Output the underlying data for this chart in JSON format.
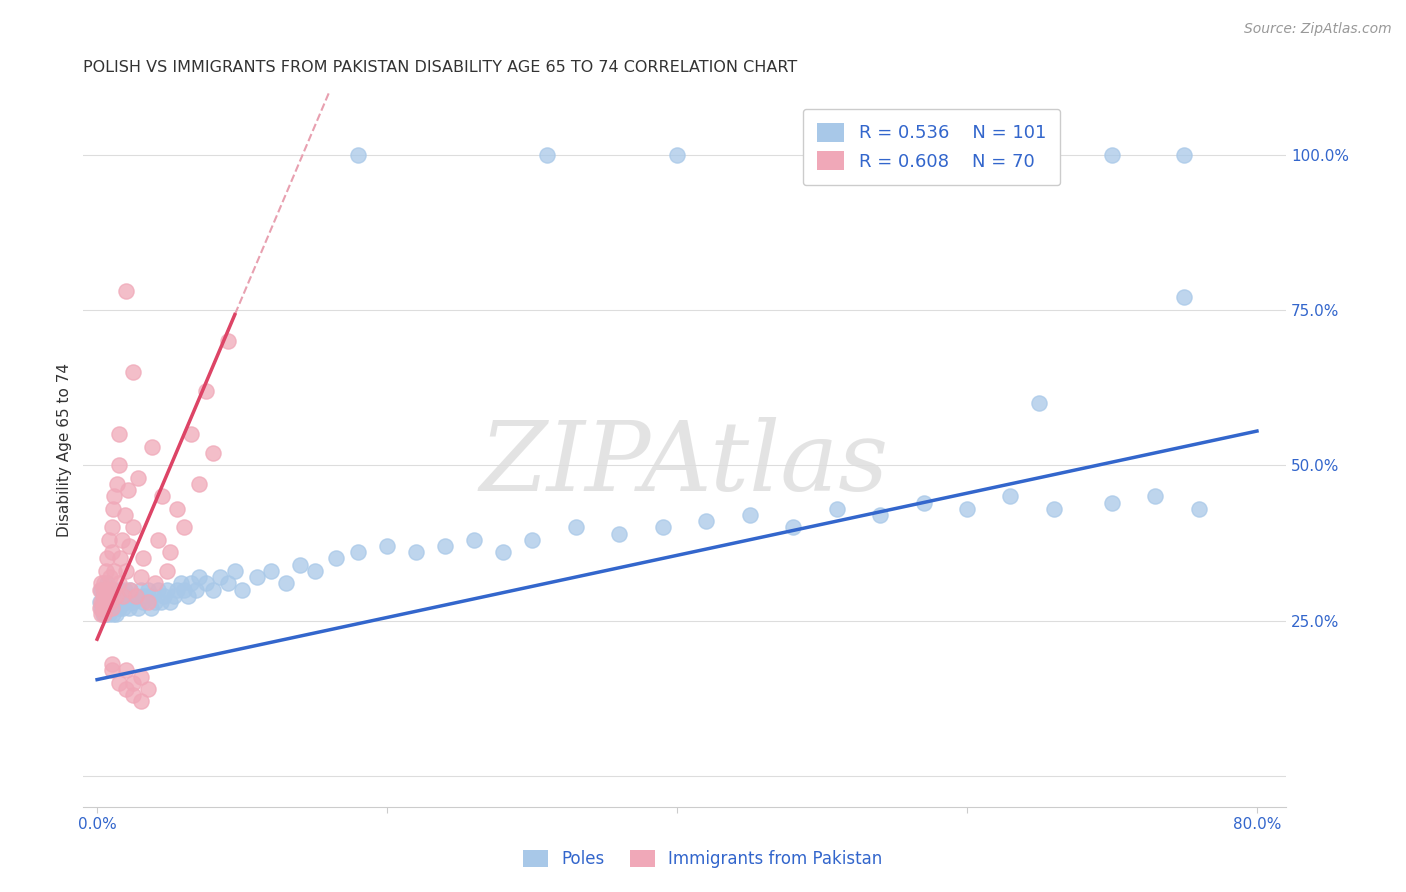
{
  "title": "POLISH VS IMMIGRANTS FROM PAKISTAN DISABILITY AGE 65 TO 74 CORRELATION CHART",
  "source": "Source: ZipAtlas.com",
  "ylabel": "Disability Age 65 to 74",
  "blue_color": "#a8c8e8",
  "pink_color": "#f0a8b8",
  "blue_line_color": "#3366cc",
  "pink_line_color": "#dd4466",
  "pink_dash_color": "#e8a0b0",
  "legend_blue_r": "R = 0.536",
  "legend_blue_n": "N = 101",
  "legend_pink_r": "R = 0.608",
  "legend_pink_n": "N = 70",
  "watermark": "ZIPAtlas",
  "blue_intercept": 0.155,
  "blue_slope": 0.5,
  "pink_intercept": 0.22,
  "pink_slope": 5.5,
  "blue_scatter_x": [
    0.002,
    0.003,
    0.003,
    0.004,
    0.004,
    0.005,
    0.005,
    0.005,
    0.006,
    0.006,
    0.007,
    0.007,
    0.008,
    0.008,
    0.009,
    0.009,
    0.01,
    0.01,
    0.01,
    0.011,
    0.011,
    0.012,
    0.012,
    0.013,
    0.013,
    0.014,
    0.015,
    0.015,
    0.016,
    0.017,
    0.018,
    0.019,
    0.02,
    0.021,
    0.022,
    0.023,
    0.025,
    0.027,
    0.028,
    0.03,
    0.032,
    0.033,
    0.035,
    0.037,
    0.038,
    0.04,
    0.042,
    0.044,
    0.046,
    0.048,
    0.05,
    0.053,
    0.055,
    0.058,
    0.06,
    0.063,
    0.065,
    0.068,
    0.07,
    0.075,
    0.08,
    0.085,
    0.09,
    0.095,
    0.1,
    0.11,
    0.12,
    0.13,
    0.14,
    0.15,
    0.165,
    0.18,
    0.2,
    0.22,
    0.24,
    0.26,
    0.28,
    0.3,
    0.33,
    0.36,
    0.39,
    0.42,
    0.45,
    0.48,
    0.51,
    0.54,
    0.57,
    0.6,
    0.63,
    0.66,
    0.7,
    0.73,
    0.76,
    0.18,
    0.31,
    0.4,
    0.57,
    0.7,
    0.75,
    0.65,
    0.75
  ],
  "blue_scatter_y": [
    0.28,
    0.27,
    0.3,
    0.26,
    0.29,
    0.27,
    0.28,
    0.3,
    0.26,
    0.29,
    0.27,
    0.31,
    0.28,
    0.26,
    0.29,
    0.3,
    0.27,
    0.28,
    0.3,
    0.26,
    0.29,
    0.27,
    0.3,
    0.28,
    0.26,
    0.29,
    0.27,
    0.3,
    0.28,
    0.29,
    0.27,
    0.3,
    0.28,
    0.29,
    0.27,
    0.3,
    0.28,
    0.29,
    0.27,
    0.3,
    0.28,
    0.29,
    0.3,
    0.27,
    0.29,
    0.28,
    0.3,
    0.28,
    0.29,
    0.3,
    0.28,
    0.29,
    0.3,
    0.31,
    0.3,
    0.29,
    0.31,
    0.3,
    0.32,
    0.31,
    0.3,
    0.32,
    0.31,
    0.33,
    0.3,
    0.32,
    0.33,
    0.31,
    0.34,
    0.33,
    0.35,
    0.36,
    0.37,
    0.36,
    0.37,
    0.38,
    0.36,
    0.38,
    0.4,
    0.39,
    0.4,
    0.41,
    0.42,
    0.4,
    0.43,
    0.42,
    0.44,
    0.43,
    0.45,
    0.43,
    0.44,
    0.45,
    0.43,
    1.0,
    1.0,
    1.0,
    1.0,
    1.0,
    1.0,
    0.6,
    0.77
  ],
  "pink_scatter_x": [
    0.002,
    0.002,
    0.003,
    0.003,
    0.003,
    0.004,
    0.004,
    0.004,
    0.005,
    0.005,
    0.005,
    0.006,
    0.006,
    0.007,
    0.007,
    0.008,
    0.008,
    0.009,
    0.009,
    0.01,
    0.01,
    0.01,
    0.011,
    0.011,
    0.012,
    0.012,
    0.013,
    0.014,
    0.015,
    0.015,
    0.016,
    0.017,
    0.018,
    0.019,
    0.02,
    0.021,
    0.022,
    0.023,
    0.025,
    0.027,
    0.028,
    0.03,
    0.032,
    0.035,
    0.038,
    0.04,
    0.042,
    0.045,
    0.048,
    0.05,
    0.055,
    0.06,
    0.065,
    0.07,
    0.075,
    0.08,
    0.09,
    0.01,
    0.015,
    0.02,
    0.025,
    0.03,
    0.02,
    0.025,
    0.03,
    0.035,
    0.02,
    0.025,
    0.015,
    0.01
  ],
  "pink_scatter_y": [
    0.27,
    0.3,
    0.28,
    0.26,
    0.31,
    0.28,
    0.3,
    0.27,
    0.29,
    0.26,
    0.31,
    0.28,
    0.33,
    0.29,
    0.35,
    0.3,
    0.38,
    0.32,
    0.28,
    0.36,
    0.4,
    0.27,
    0.43,
    0.3,
    0.45,
    0.33,
    0.29,
    0.47,
    0.31,
    0.5,
    0.35,
    0.38,
    0.29,
    0.42,
    0.33,
    0.46,
    0.37,
    0.3,
    0.4,
    0.29,
    0.48,
    0.32,
    0.35,
    0.28,
    0.53,
    0.31,
    0.38,
    0.45,
    0.33,
    0.36,
    0.43,
    0.4,
    0.55,
    0.47,
    0.62,
    0.52,
    0.7,
    0.17,
    0.15,
    0.14,
    0.13,
    0.12,
    0.17,
    0.15,
    0.16,
    0.14,
    0.78,
    0.65,
    0.55,
    0.18
  ],
  "title_fontsize": 11.5,
  "axis_label_fontsize": 11,
  "tick_fontsize": 11,
  "legend_fontsize": 13,
  "watermark_fontsize": 70,
  "source_fontsize": 10,
  "background_color": "#ffffff",
  "grid_color": "#dddddd"
}
